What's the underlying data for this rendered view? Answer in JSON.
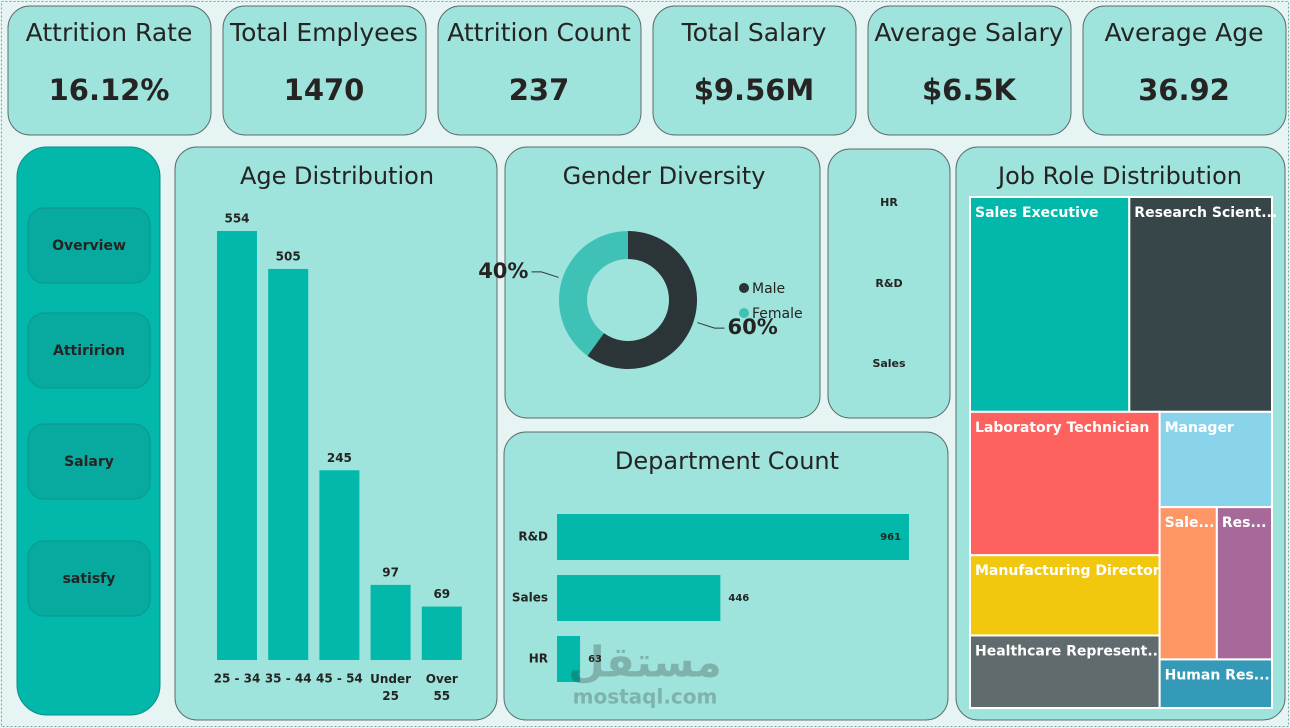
{
  "kpis": [
    {
      "title": "Attrition Rate",
      "value": "16.12%"
    },
    {
      "title": "Total Emplyees",
      "value": "1470"
    },
    {
      "title": "Attrition Count",
      "value": "237"
    },
    {
      "title": "Total Salary",
      "value": "$9.56M"
    },
    {
      "title": "Average Salary",
      "value": "$6.5K"
    },
    {
      "title": "Average Age",
      "value": "36.92"
    }
  ],
  "nav": [
    "Overview",
    "Attiririon",
    "Salary",
    "satisfy"
  ],
  "slicer": [
    "HR",
    "R&D",
    "Sales"
  ],
  "watermark": {
    "arabic": "مستقل",
    "site": "mostaql.com"
  },
  "chart_data": [
    {
      "type": "bar",
      "title": "Age Distribution",
      "categories": [
        "25 - 34",
        "35 - 44",
        "45 - 54",
        "Under 25",
        "Over 55"
      ],
      "values": [
        554,
        505,
        245,
        97,
        69
      ],
      "color": "#01b8aa"
    },
    {
      "type": "donut",
      "title": "Gender Diversity",
      "categories": [
        "Male",
        "Female"
      ],
      "values": [
        60,
        40
      ],
      "value_labels": [
        "60%",
        "40%"
      ],
      "colors": [
        "#2b3436",
        "#3fc1b5"
      ]
    },
    {
      "type": "hbar",
      "title": "Department Count",
      "categories": [
        "R&D",
        "Sales",
        "HR"
      ],
      "values": [
        961,
        446,
        63
      ],
      "color": "#01b8aa"
    },
    {
      "type": "treemap",
      "title": "Job Role Distribution",
      "categories": [
        "Sales Executive",
        "Research Scient...",
        "Laboratory Technician",
        "Manufacturing Director",
        "Healthcare Represent...",
        "Manager",
        "Sale...",
        "Res...",
        "Human Res..."
      ],
      "values": [
        326,
        292,
        259,
        145,
        131,
        102,
        83,
        80,
        52
      ],
      "colors": [
        "#01b8aa",
        "#374649",
        "#fd625e",
        "#f2c80f",
        "#5f6b6d",
        "#8ad4eb",
        "#fe9666",
        "#a66999",
        "#3599b8"
      ]
    }
  ]
}
